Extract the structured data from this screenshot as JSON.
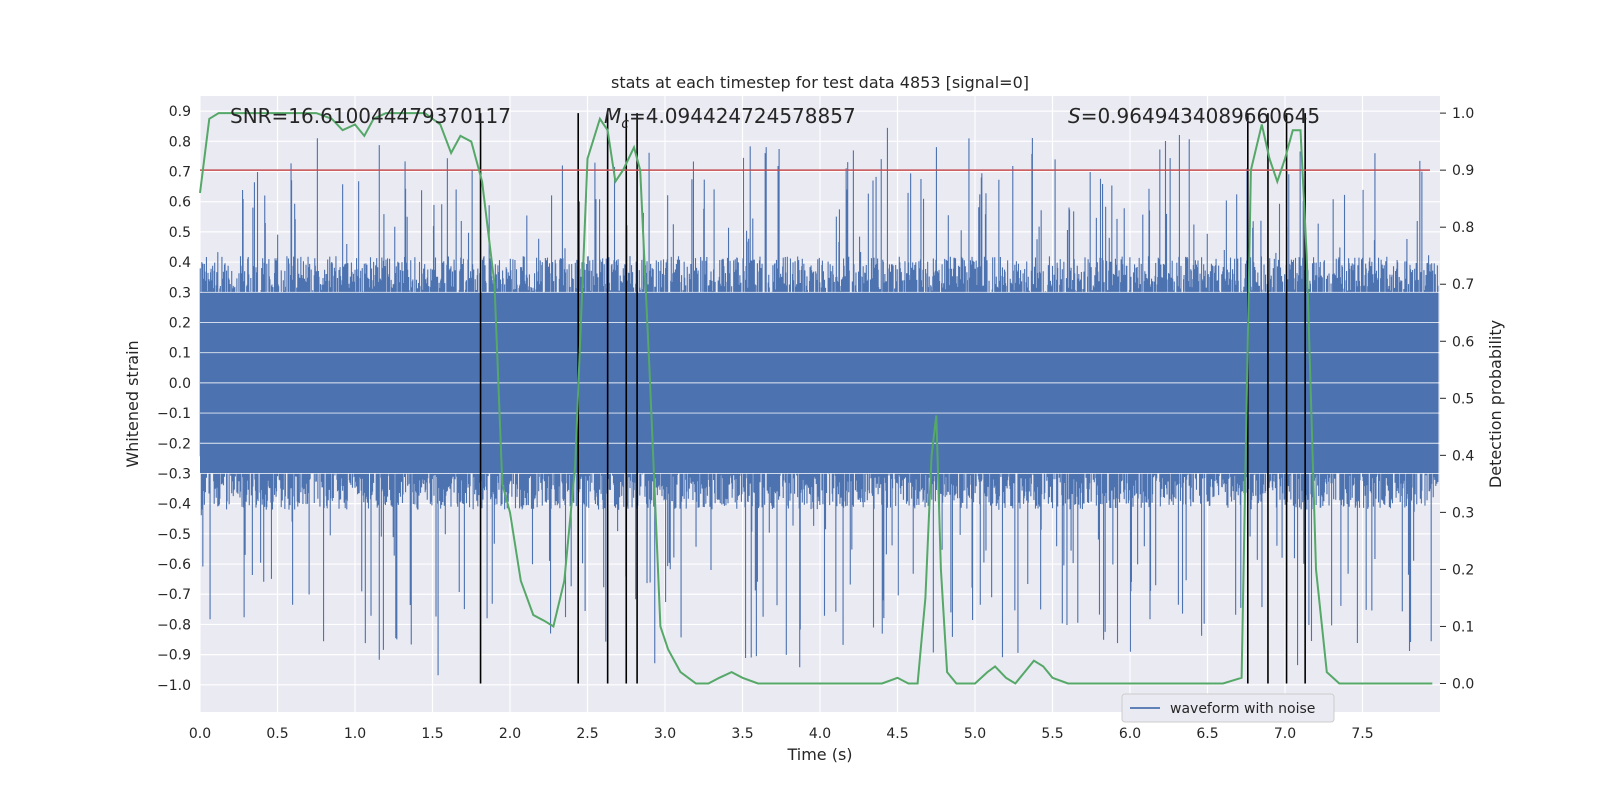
{
  "chart_data": {
    "type": "line",
    "title": "stats at each timestep for test data 4853 [signal=0]",
    "xlabel": "Time (s)",
    "ylabel_left": "Whitened strain",
    "ylabel_right": "Detection probability",
    "xlim": [
      0.0,
      8.0
    ],
    "ylim_left": [
      -1.09,
      0.95
    ],
    "ylim_right": [
      -0.05,
      1.03
    ],
    "x_ticks": [
      "0.0",
      "0.5",
      "1.0",
      "1.5",
      "2.0",
      "2.5",
      "3.0",
      "3.5",
      "4.0",
      "4.5",
      "5.0",
      "5.5",
      "6.0",
      "6.5",
      "7.0",
      "7.5"
    ],
    "x_tick_values": [
      0.0,
      0.5,
      1.0,
      1.5,
      2.0,
      2.5,
      3.0,
      3.5,
      4.0,
      4.5,
      5.0,
      5.5,
      6.0,
      6.5,
      7.0,
      7.5
    ],
    "y_left_ticks": [
      "0.9",
      "0.8",
      "0.7",
      "0.6",
      "0.5",
      "0.4",
      "0.3",
      "0.2",
      "0.1",
      "0.0",
      "−0.1",
      "−0.2",
      "−0.3",
      "−0.4",
      "−0.5",
      "−0.6",
      "−0.7",
      "−0.8",
      "−0.9",
      "−1.0"
    ],
    "y_left_tick_values": [
      0.9,
      0.8,
      0.7,
      0.6,
      0.5,
      0.4,
      0.3,
      0.2,
      0.1,
      0.0,
      -0.1,
      -0.2,
      -0.3,
      -0.4,
      -0.5,
      -0.6,
      -0.7,
      -0.8,
      -0.9,
      -1.0
    ],
    "y_right_ticks": [
      "1.0",
      "0.9",
      "0.8",
      "0.7",
      "0.6",
      "0.5",
      "0.4",
      "0.3",
      "0.2",
      "0.1",
      "0.0"
    ],
    "y_right_tick_values": [
      1.0,
      0.9,
      0.8,
      0.7,
      0.6,
      0.5,
      0.4,
      0.3,
      0.2,
      0.1,
      0.0
    ],
    "annotations": {
      "snr": "SNR=16.610044479370117",
      "mc_symbol": "M",
      "mc_sub": "c",
      "mc_value": "=4.094424724578857",
      "s_symbol": "S",
      "s_value": "=0.9649434089660645"
    },
    "threshold": {
      "value": 0.9,
      "axis": "right",
      "color": "#c44e52"
    },
    "vertical_lines_time": [
      1.81,
      2.44,
      2.63,
      2.75,
      2.82,
      6.76,
      6.89,
      7.01,
      7.13
    ],
    "legend": {
      "label": "waveform with noise",
      "location": "lower-right"
    },
    "series": [
      {
        "name": "waveform with noise",
        "axis": "left",
        "color": "#4c72b0",
        "band_typical": [
          -0.42,
          0.42
        ],
        "spike_max": 0.86,
        "spike_min": -1.0
      },
      {
        "name": "Detection probability",
        "axis": "right",
        "color": "#55a868",
        "x": [
          0.0,
          0.06,
          0.12,
          0.25,
          0.5,
          0.75,
          0.85,
          0.92,
          1.0,
          1.06,
          1.12,
          1.2,
          1.3,
          1.45,
          1.55,
          1.62,
          1.68,
          1.75,
          1.82,
          1.9,
          1.95,
          2.0,
          2.07,
          2.15,
          2.22,
          2.28,
          2.35,
          2.42,
          2.5,
          2.58,
          2.63,
          2.68,
          2.73,
          2.8,
          2.84,
          2.9,
          2.97,
          3.02,
          3.1,
          3.2,
          3.28,
          3.35,
          3.43,
          3.5,
          3.6,
          3.7,
          3.8,
          4.0,
          4.2,
          4.4,
          4.5,
          4.57,
          4.63,
          4.68,
          4.72,
          4.75,
          4.78,
          4.82,
          4.88,
          5.0,
          5.08,
          5.13,
          5.2,
          5.26,
          5.32,
          5.38,
          5.44,
          5.5,
          5.6,
          5.75,
          5.85,
          6.0,
          6.3,
          6.6,
          6.72,
          6.78,
          6.85,
          6.9,
          6.95,
          7.0,
          7.05,
          7.1,
          7.14,
          7.2,
          7.27,
          7.35,
          7.45,
          7.6,
          7.8,
          7.95
        ],
        "values": [
          0.86,
          0.99,
          1.0,
          1.0,
          1.0,
          1.0,
          0.99,
          0.97,
          0.98,
          0.96,
          0.99,
          1.0,
          1.0,
          1.0,
          0.98,
          0.93,
          0.96,
          0.95,
          0.88,
          0.7,
          0.35,
          0.3,
          0.18,
          0.12,
          0.11,
          0.1,
          0.18,
          0.38,
          0.92,
          0.99,
          0.97,
          0.88,
          0.9,
          0.94,
          0.9,
          0.55,
          0.1,
          0.06,
          0.02,
          0.0,
          0.0,
          0.01,
          0.02,
          0.01,
          0.0,
          0.0,
          0.0,
          0.0,
          0.0,
          0.0,
          0.01,
          0.0,
          0.0,
          0.15,
          0.4,
          0.47,
          0.2,
          0.02,
          0.0,
          0.0,
          0.02,
          0.03,
          0.01,
          0.0,
          0.02,
          0.04,
          0.03,
          0.01,
          0.0,
          0.0,
          0.0,
          0.0,
          0.0,
          0.0,
          0.01,
          0.9,
          0.98,
          0.92,
          0.88,
          0.92,
          0.97,
          0.97,
          0.75,
          0.2,
          0.02,
          0.0,
          0.0,
          0.0,
          0.0,
          0.0
        ]
      }
    ]
  }
}
